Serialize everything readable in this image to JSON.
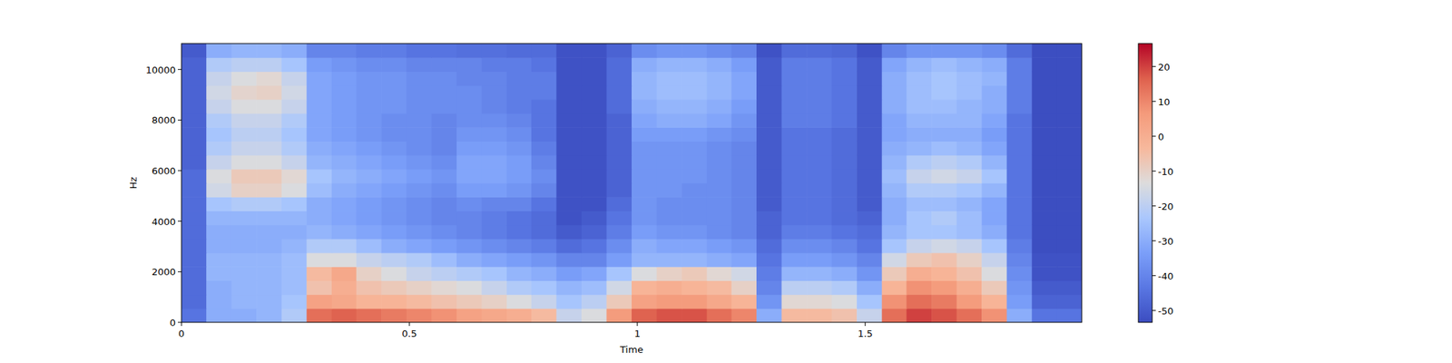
{
  "chart_data": {
    "type": "heatmap",
    "x_label": "Time",
    "y_label": "Hz",
    "xlim": [
      0,
      1.975
    ],
    "ylim": [
      0,
      11025
    ],
    "xticks": [
      0,
      0.5,
      1,
      1.5
    ],
    "yticks": [
      0,
      2000,
      4000,
      6000,
      8000,
      10000
    ],
    "colorbar": {
      "range": [
        -53.4,
        26.6
      ],
      "ticks": [
        -50,
        -40,
        -30,
        -20,
        -10,
        0,
        10,
        20
      ]
    },
    "x": [
      0.027,
      0.082,
      0.137,
      0.192,
      0.247,
      0.302,
      0.357,
      0.411,
      0.466,
      0.521,
      0.576,
      0.631,
      0.686,
      0.741,
      0.795,
      0.85,
      0.905,
      0.96,
      1.015,
      1.07,
      1.125,
      1.18,
      1.234,
      1.289,
      1.344,
      1.399,
      1.454,
      1.509,
      1.564,
      1.618,
      1.673,
      1.728,
      1.783,
      1.838,
      1.893,
      1.948
    ],
    "y": [
      276,
      827,
      1378,
      1929,
      2481,
      3032,
      3583,
      4134,
      4686,
      5237,
      5788,
      6339,
      6891,
      7442,
      7993,
      8544,
      9096,
      9647,
      10198,
      10749
    ],
    "cells": [
      [
        -44,
        -30,
        -30,
        -28,
        -22,
        14,
        16,
        14,
        12,
        10,
        8,
        4,
        2,
        0,
        -4,
        -18,
        -14,
        6,
        16,
        18,
        18,
        14,
        10,
        -30,
        -4,
        -4,
        -6,
        -18,
        14,
        20,
        18,
        14,
        8,
        -30,
        -44,
        -44
      ],
      [
        -46,
        -30,
        -28,
        -28,
        -24,
        4,
        2,
        -2,
        -2,
        -4,
        -6,
        -8,
        -10,
        -14,
        -18,
        -24,
        -20,
        -8,
        4,
        6,
        6,
        2,
        -2,
        -36,
        -12,
        -12,
        -14,
        -24,
        8,
        14,
        12,
        6,
        -2,
        -34,
        -48,
        -48
      ],
      [
        -46,
        -30,
        -28,
        -28,
        -26,
        -6,
        0,
        -6,
        -8,
        -10,
        -12,
        -14,
        -18,
        -22,
        -24,
        -28,
        -26,
        -16,
        -2,
        0,
        -2,
        -4,
        -10,
        -40,
        -20,
        -20,
        -22,
        -30,
        -2,
        8,
        6,
        0,
        -8,
        -36,
        -50,
        -50
      ],
      [
        -46,
        -28,
        -28,
        -28,
        -26,
        -4,
        2,
        -10,
        -14,
        -18,
        -20,
        -22,
        -24,
        -28,
        -30,
        -34,
        -32,
        -24,
        -14,
        -10,
        -8,
        -12,
        -16,
        -42,
        -28,
        -28,
        -30,
        -36,
        -8,
        0,
        -2,
        -6,
        -14,
        -38,
        -52,
        -52
      ],
      [
        -46,
        -28,
        -28,
        -28,
        -26,
        -14,
        -14,
        -18,
        -20,
        -22,
        -26,
        -30,
        -32,
        -34,
        -36,
        -40,
        -40,
        -34,
        -28,
        -28,
        -28,
        -30,
        -32,
        -44,
        -34,
        -34,
        -36,
        -40,
        -16,
        -8,
        -6,
        -10,
        -18,
        -40,
        -52,
        -52
      ],
      [
        -46,
        -30,
        -30,
        -30,
        -28,
        -22,
        -22,
        -26,
        -30,
        -32,
        -34,
        -36,
        -38,
        -40,
        -42,
        -46,
        -44,
        -38,
        -30,
        -32,
        -32,
        -34,
        -36,
        -46,
        -38,
        -38,
        -40,
        -44,
        -24,
        -18,
        -16,
        -18,
        -24,
        -42,
        -53,
        -53
      ],
      [
        -46,
        -30,
        -30,
        -30,
        -30,
        -28,
        -30,
        -32,
        -34,
        -36,
        -38,
        -40,
        -42,
        -44,
        -46,
        -50,
        -48,
        -42,
        -34,
        -36,
        -36,
        -38,
        -40,
        -48,
        -42,
        -42,
        -44,
        -46,
        -28,
        -24,
        -24,
        -26,
        -30,
        -44,
        -53,
        -53
      ],
      [
        -46,
        -28,
        -28,
        -28,
        -28,
        -30,
        -32,
        -34,
        -36,
        -38,
        -40,
        -40,
        -42,
        -44,
        -46,
        -52,
        -50,
        -44,
        -36,
        -38,
        -38,
        -38,
        -40,
        -48,
        -44,
        -44,
        -46,
        -48,
        -30,
        -24,
        -22,
        -26,
        -32,
        -44,
        -53,
        -53
      ],
      [
        -46,
        -24,
        -22,
        -22,
        -24,
        -30,
        -32,
        -34,
        -36,
        -38,
        -40,
        -38,
        -40,
        -40,
        -44,
        -52,
        -52,
        -46,
        -36,
        -38,
        -38,
        -38,
        -40,
        -50,
        -44,
        -44,
        -46,
        -50,
        -30,
        -26,
        -26,
        -28,
        -32,
        -44,
        -53,
        -53
      ],
      [
        -46,
        -16,
        -10,
        -10,
        -14,
        -26,
        -30,
        -32,
        -34,
        -36,
        -38,
        -34,
        -34,
        -36,
        -40,
        -52,
        -52,
        -48,
        -36,
        -36,
        -38,
        -38,
        -40,
        -50,
        -44,
        -44,
        -46,
        -50,
        -28,
        -22,
        -22,
        -24,
        -28,
        -44,
        -53,
        -53
      ],
      [
        -46,
        -14,
        -8,
        -8,
        -12,
        -24,
        -28,
        -30,
        -32,
        -34,
        -36,
        -32,
        -32,
        -34,
        -38,
        -52,
        -52,
        -48,
        -36,
        -36,
        -36,
        -38,
        -40,
        -50,
        -44,
        -44,
        -46,
        -50,
        -26,
        -18,
        -16,
        -18,
        -24,
        -44,
        -53,
        -53
      ],
      [
        -48,
        -18,
        -14,
        -14,
        -18,
        -28,
        -30,
        -32,
        -34,
        -36,
        -38,
        -32,
        -32,
        -34,
        -40,
        -52,
        -52,
        -48,
        -36,
        -36,
        -36,
        -38,
        -40,
        -50,
        -44,
        -44,
        -46,
        -50,
        -28,
        -22,
        -20,
        -22,
        -28,
        -44,
        -53,
        -53
      ],
      [
        -48,
        -22,
        -18,
        -18,
        -22,
        -30,
        -32,
        -34,
        -36,
        -38,
        -40,
        -34,
        -34,
        -36,
        -42,
        -52,
        -52,
        -48,
        -36,
        -36,
        -36,
        -38,
        -40,
        -50,
        -44,
        -44,
        -46,
        -50,
        -30,
        -28,
        -26,
        -28,
        -32,
        -44,
        -53,
        -53
      ],
      [
        -48,
        -24,
        -20,
        -20,
        -24,
        -32,
        -34,
        -36,
        -38,
        -38,
        -40,
        -36,
        -36,
        -38,
        -44,
        -52,
        -52,
        -48,
        -34,
        -34,
        -34,
        -36,
        -38,
        -50,
        -44,
        -44,
        -46,
        -50,
        -32,
        -30,
        -30,
        -30,
        -34,
        -44,
        -53,
        -53
      ],
      [
        -48,
        -22,
        -18,
        -18,
        -22,
        -32,
        -34,
        -36,
        -38,
        -38,
        -40,
        -38,
        -38,
        -40,
        -44,
        -52,
        -52,
        -48,
        -32,
        -30,
        -30,
        -32,
        -36,
        -50,
        -42,
        -42,
        -44,
        -50,
        -32,
        -28,
        -28,
        -28,
        -32,
        -44,
        -53,
        -53
      ],
      [
        -48,
        -18,
        -14,
        -14,
        -18,
        -32,
        -34,
        -36,
        -36,
        -38,
        -38,
        -38,
        -40,
        -42,
        -44,
        -52,
        -52,
        -46,
        -30,
        -28,
        -28,
        -30,
        -34,
        -50,
        -42,
        -42,
        -44,
        -50,
        -30,
        -26,
        -26,
        -28,
        -30,
        -42,
        -53,
        -53
      ],
      [
        -48,
        -16,
        -11,
        -10,
        -16,
        -32,
        -34,
        -36,
        -36,
        -38,
        -38,
        -38,
        -40,
        -42,
        -42,
        -52,
        -52,
        -46,
        -28,
        -26,
        -26,
        -28,
        -32,
        -50,
        -42,
        -42,
        -44,
        -50,
        -30,
        -26,
        -24,
        -26,
        -30,
        -42,
        -53,
        -53
      ],
      [
        -48,
        -18,
        -14,
        -12,
        -18,
        -32,
        -34,
        -36,
        -36,
        -38,
        -38,
        -40,
        -40,
        -42,
        -42,
        -52,
        -52,
        -46,
        -28,
        -26,
        -26,
        -28,
        -32,
        -50,
        -42,
        -42,
        -44,
        -50,
        -30,
        -26,
        -24,
        -26,
        -28,
        -42,
        -53,
        -53
      ],
      [
        -48,
        -22,
        -20,
        -20,
        -24,
        -34,
        -36,
        -38,
        -38,
        -40,
        -40,
        -40,
        -42,
        -42,
        -44,
        -52,
        -52,
        -46,
        -30,
        -28,
        -28,
        -30,
        -34,
        -50,
        -42,
        -42,
        -44,
        -50,
        -32,
        -28,
        -26,
        -28,
        -30,
        -42,
        -53,
        -53
      ],
      [
        -50,
        -30,
        -28,
        -28,
        -30,
        -40,
        -40,
        -42,
        -42,
        -44,
        -44,
        -45,
        -45,
        -46,
        -46,
        -52,
        -52,
        -48,
        -38,
        -36,
        -36,
        -38,
        -40,
        -52,
        -46,
        -46,
        -47,
        -52,
        -40,
        -36,
        -36,
        -36,
        -38,
        -46,
        -53,
        -53
      ]
    ]
  }
}
